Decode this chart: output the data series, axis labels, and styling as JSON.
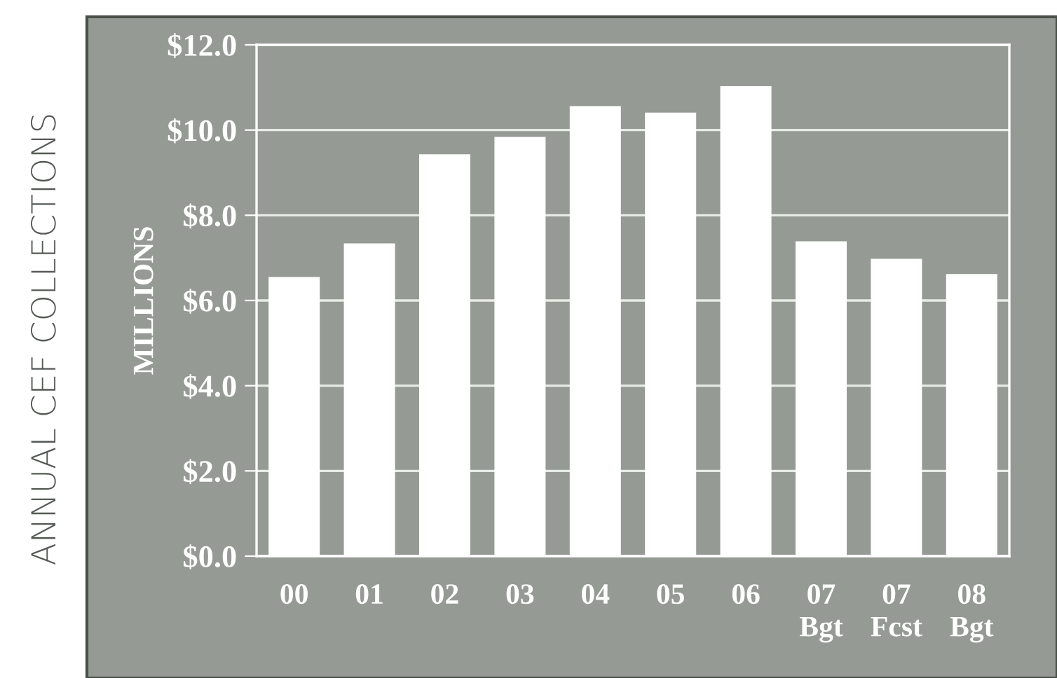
{
  "chart_data": {
    "type": "bar",
    "title": "ANNUAL CEF COLLECTIONS",
    "ylabel": "MILLIONS",
    "categories": [
      "00",
      "01",
      "02",
      "03",
      "04",
      "05",
      "06",
      "07\nBgt",
      "07\nFcst",
      "08\nBgt"
    ],
    "values": [
      6.55,
      7.34,
      9.43,
      9.84,
      10.56,
      10.41,
      11.03,
      7.39,
      6.98,
      6.62
    ],
    "color": "#ffffff",
    "ylim": [
      0,
      12
    ],
    "yticks": [
      {
        "value": 0,
        "label": "$0.0"
      },
      {
        "value": 2,
        "label": "$2.0"
      },
      {
        "value": 4,
        "label": "$4.0"
      },
      {
        "value": 6,
        "label": "$6.0"
      },
      {
        "value": 8,
        "label": "$8.0"
      },
      {
        "value": 10,
        "label": "$10.0"
      },
      {
        "value": 12,
        "label": "$12.0"
      }
    ],
    "grid": "y"
  }
}
